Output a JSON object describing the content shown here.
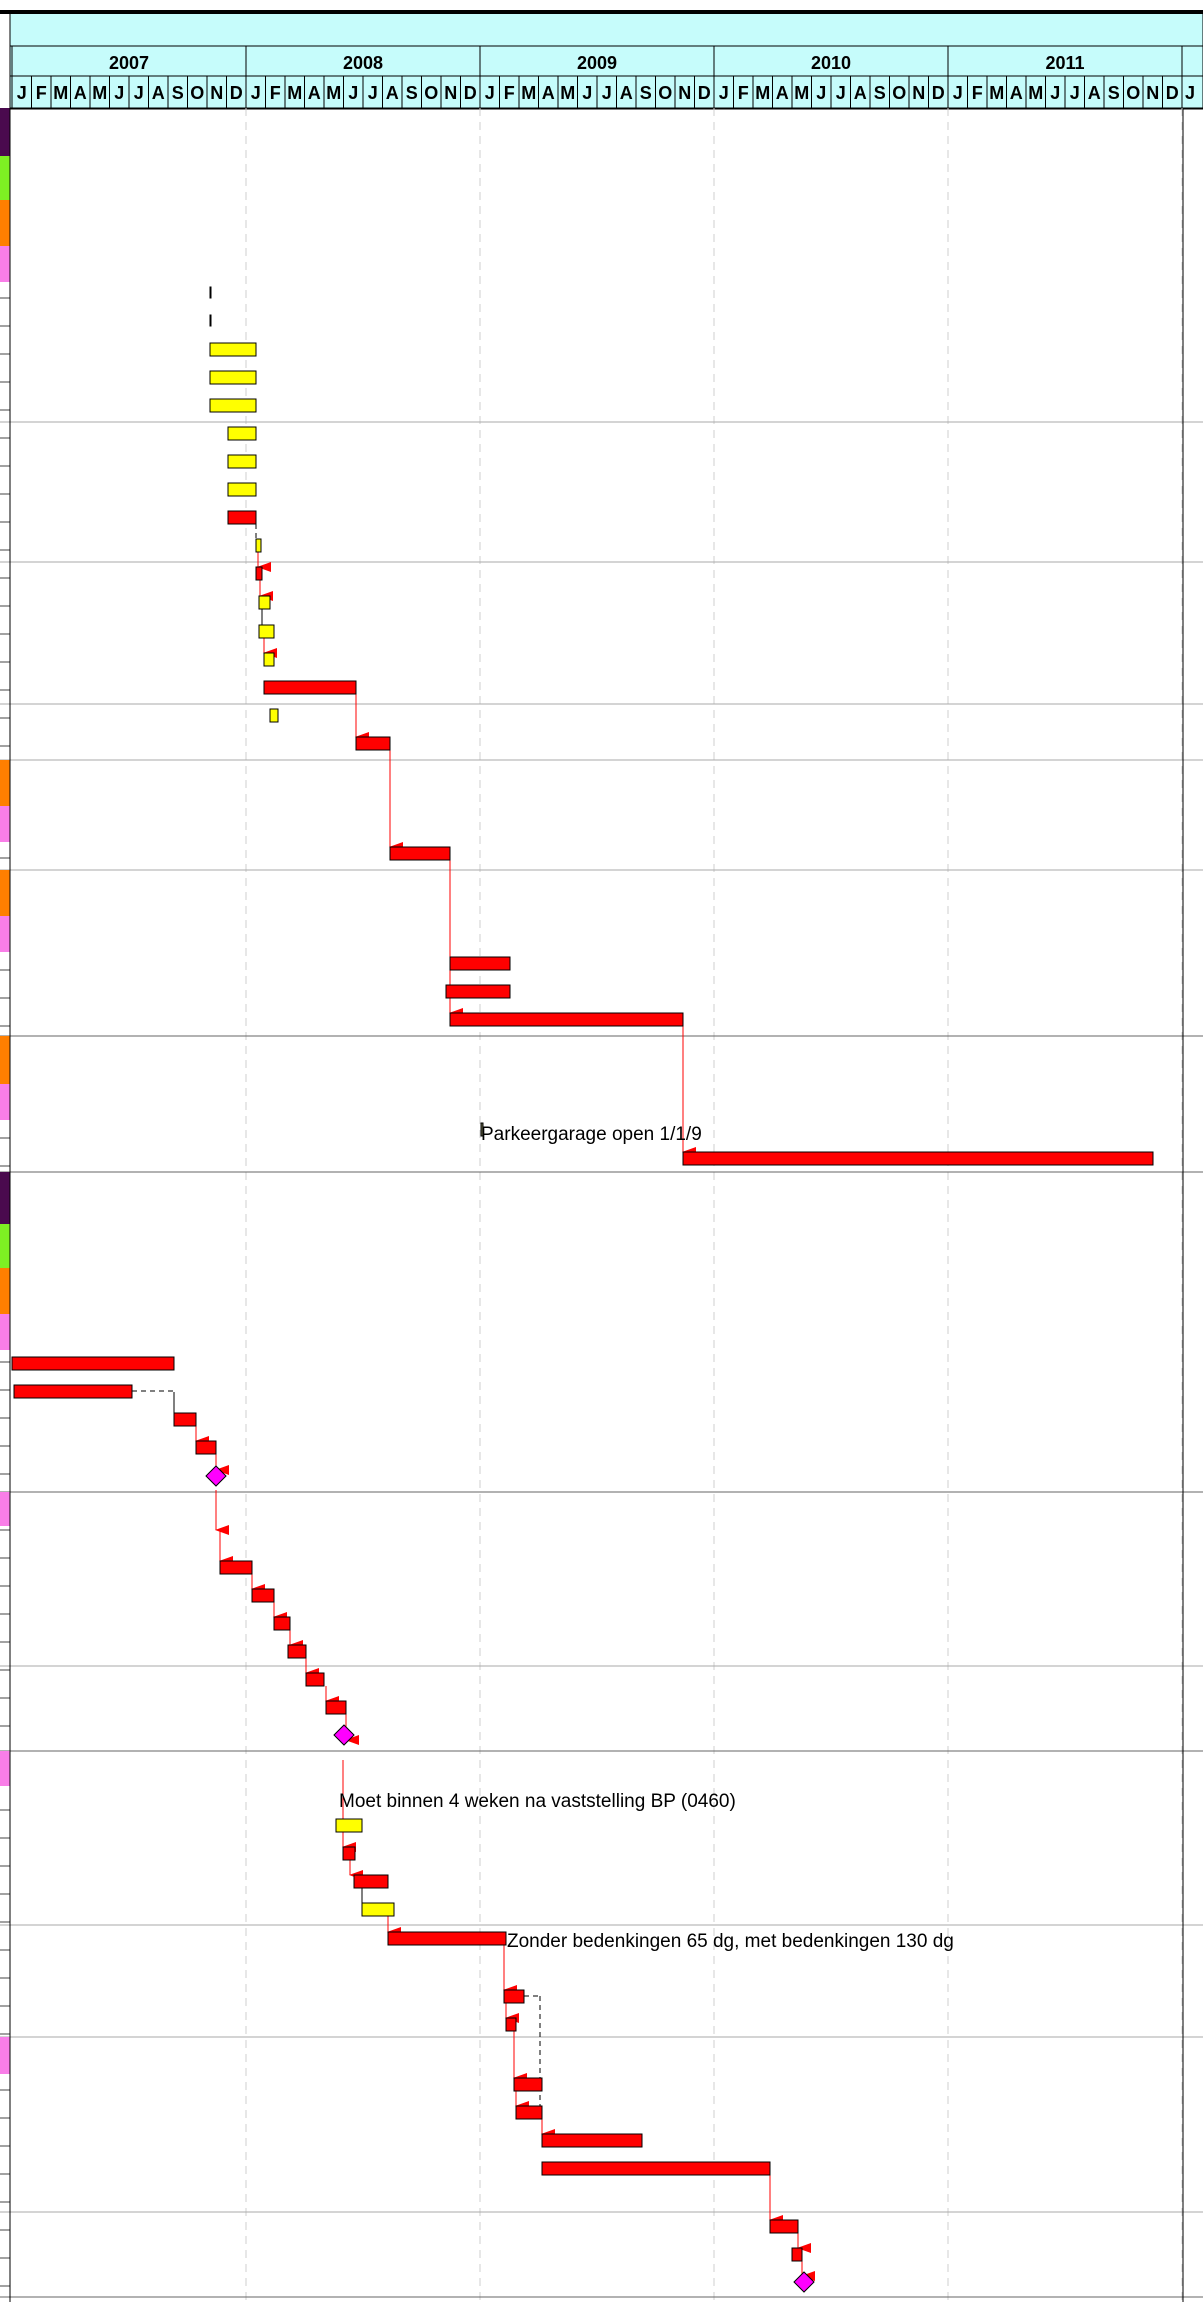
{
  "header": {
    "years": [
      "2007",
      "2008",
      "2009",
      "2010",
      "2011"
    ],
    "month_letters": [
      "J",
      "F",
      "M",
      "A",
      "M",
      "J",
      "J",
      "A",
      "S",
      "O",
      "N",
      "D"
    ],
    "trailing_partial_letter": "J"
  },
  "colors": {
    "header_bg": "#c6fcfb",
    "critical": "#ff0000",
    "normal": "#ffff00",
    "milestone": "#ff00ff",
    "strip_purple": "#4a0a4e",
    "strip_green": "#7ef023",
    "strip_orange": "#ff7f00",
    "strip_pink": "#f97ee8"
  },
  "notes": [
    "Parkeergarage open 1/1/9",
    "Moet binnen 4 weken na vaststelling BP (0460)",
    "Zonder bedenkingen 65 dg, met bedenkingen 130 dg"
  ]
}
